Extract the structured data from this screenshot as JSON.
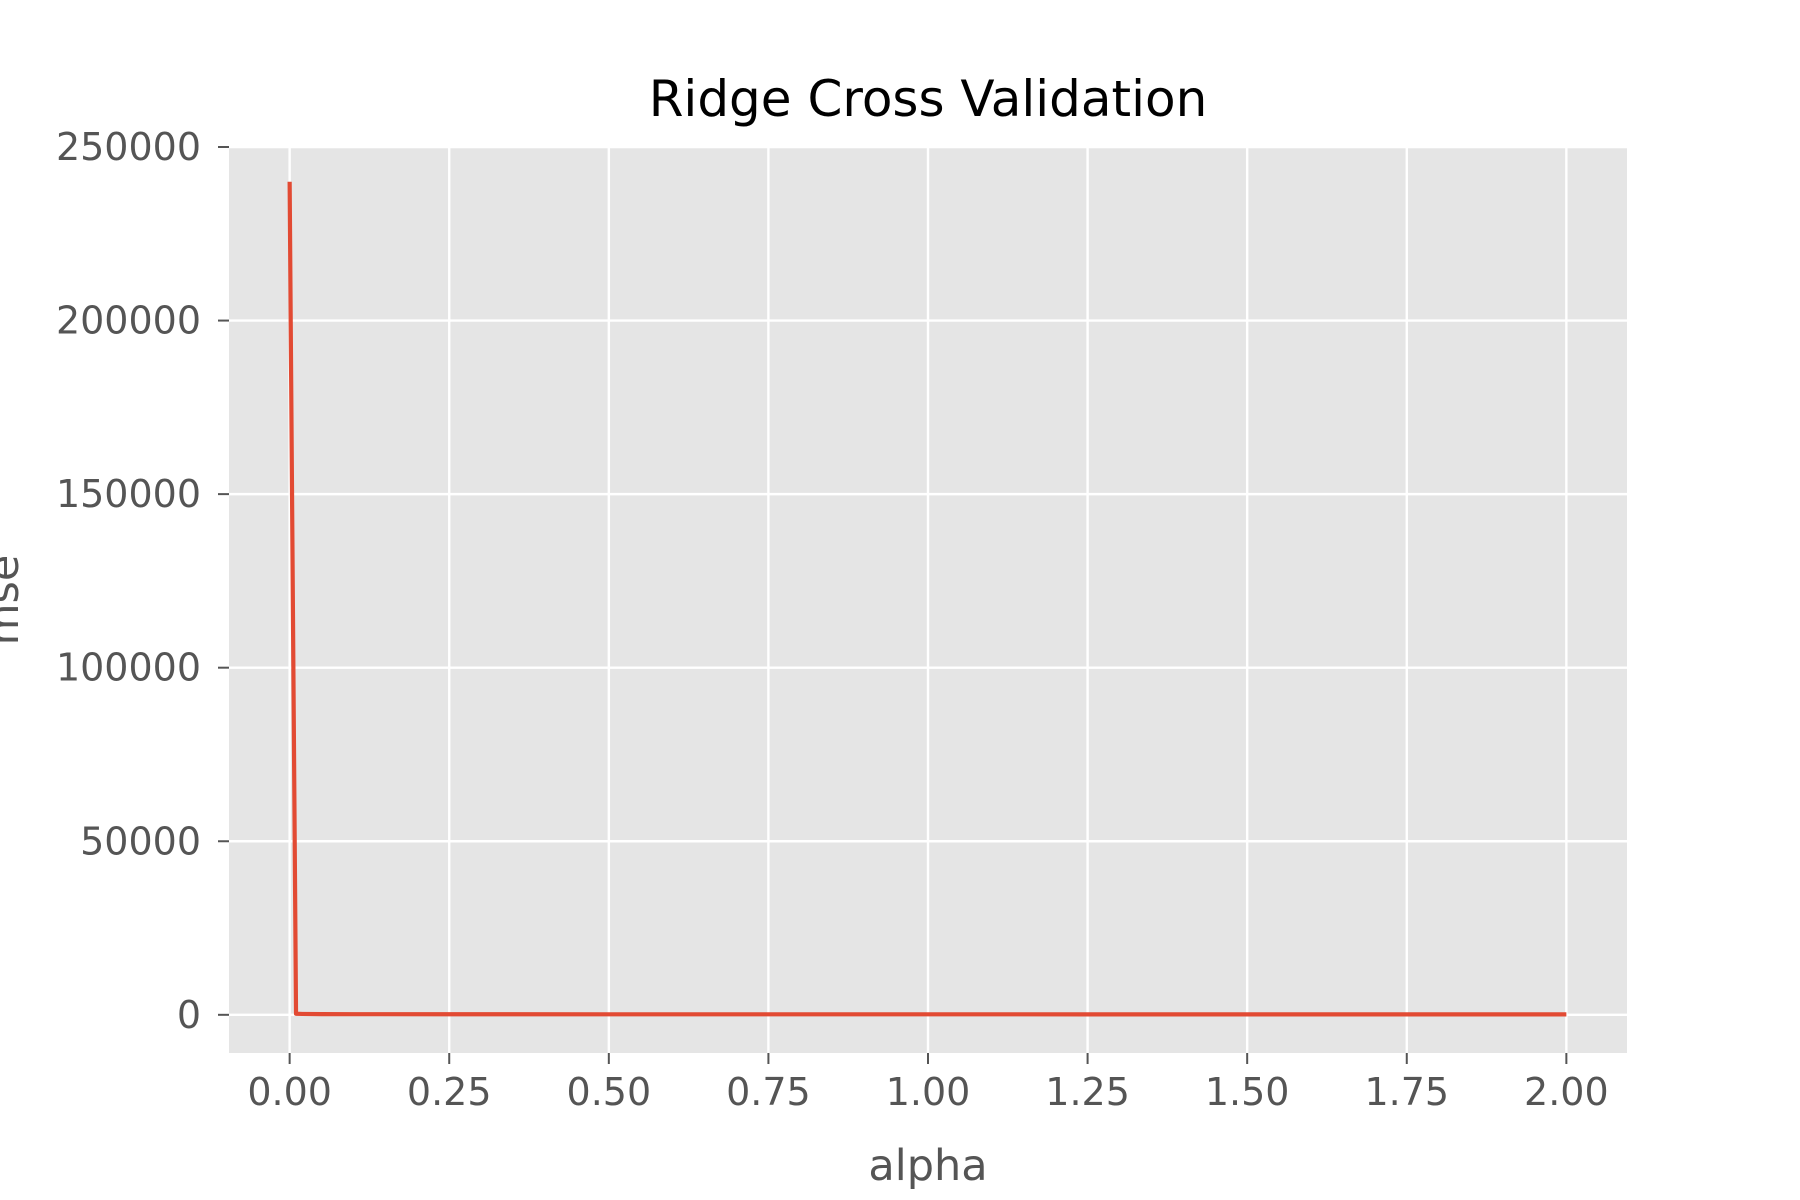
{
  "chart_data": {
    "type": "line",
    "title": "Ridge Cross Validation",
    "xlabel": "alpha",
    "ylabel": "mse",
    "xlim": [
      -0.095,
      2.095
    ],
    "ylim": [
      -11000,
      250000
    ],
    "x_ticks": [
      0.0,
      0.25,
      0.5,
      0.75,
      1.0,
      1.25,
      1.5,
      1.75,
      2.0
    ],
    "x_tick_labels": [
      "0.00",
      "0.25",
      "0.50",
      "0.75",
      "1.00",
      "1.25",
      "1.50",
      "1.75",
      "2.00"
    ],
    "y_ticks": [
      0,
      50000,
      100000,
      150000,
      200000,
      250000
    ],
    "y_tick_labels": [
      "0",
      "50000",
      "100000",
      "150000",
      "200000",
      "250000"
    ],
    "grid": true,
    "series": [
      {
        "color": "#E24A33",
        "x": [
          0.0,
          0.01,
          0.02,
          0.05,
          0.1,
          0.25,
          0.5,
          0.75,
          1.0,
          1.25,
          1.5,
          1.75,
          2.0
        ],
        "y": [
          240000,
          300,
          250,
          200,
          180,
          160,
          150,
          145,
          140,
          138,
          136,
          135,
          134
        ]
      }
    ]
  }
}
